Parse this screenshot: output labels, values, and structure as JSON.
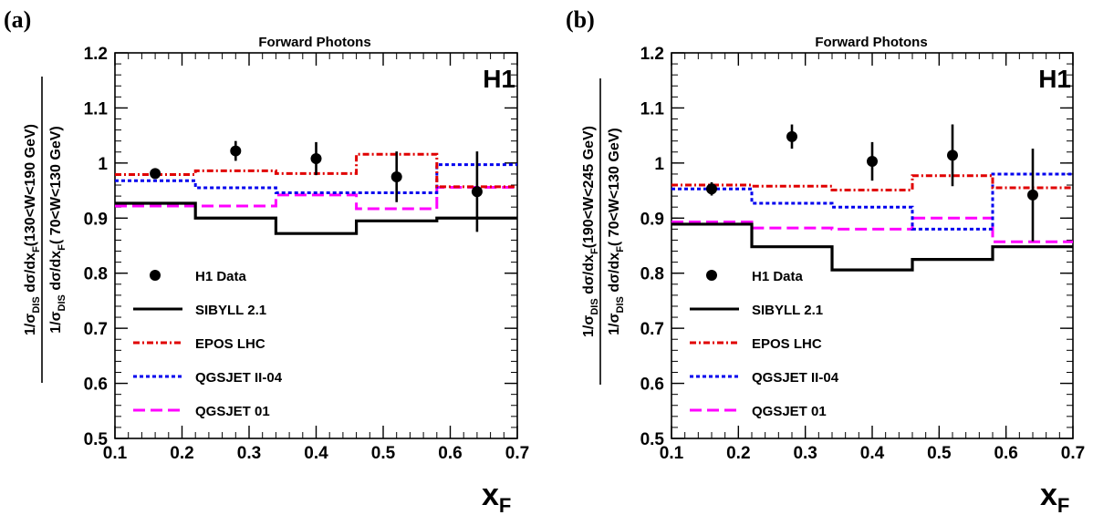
{
  "colors": {
    "sibyll": "#000000",
    "epos": "#e00000",
    "qgsjet2": "#0000ee",
    "qgsjet01": "#ff00ff",
    "data": "#000000"
  },
  "chart_data": [
    {
      "type": "line",
      "panel_label": "(a)",
      "title": "Forward Photons",
      "experiment": "H1",
      "ylabel": {
        "num_prefix": "1/σ",
        "num_sub": "DIS",
        "num_mid": " dσ/dx",
        "num_sub2": "F",
        "num_range": "(130<W<190 GeV)",
        "den_prefix": "1/σ",
        "den_sub": "DIS",
        "den_mid": " dσ/dx",
        "den_sub2": "F",
        "den_range": "( 70<W<130 GeV)"
      },
      "xlabel": {
        "main": "x",
        "sub": "F"
      },
      "xlim": [
        0.1,
        0.7
      ],
      "ylim": [
        0.5,
        1.2
      ],
      "xticks": [
        "0.1",
        "0.2",
        "0.3",
        "0.4",
        "0.5",
        "0.6",
        "0.7"
      ],
      "yticks": [
        "0.5",
        "0.6",
        "0.7",
        "0.8",
        "0.9",
        "1",
        "1.1",
        "1.2"
      ],
      "bin_edges": [
        0.1,
        0.22,
        0.34,
        0.46,
        0.58,
        0.7
      ],
      "series": [
        {
          "name": "SIBYLL 2.1",
          "style": "solid",
          "values": [
            0.927,
            0.9,
            0.872,
            0.895,
            0.9
          ]
        },
        {
          "name": "EPOS LHC",
          "style": "dashdot",
          "values": [
            0.979,
            0.986,
            0.981,
            1.016,
            0.957
          ]
        },
        {
          "name": "QGSJET II-04",
          "style": "dotted",
          "values": [
            0.968,
            0.955,
            0.946,
            0.946,
            0.997
          ]
        },
        {
          "name": "QGSJET 01",
          "style": "dashed",
          "values": [
            0.922,
            0.922,
            0.942,
            0.917,
            0.956
          ]
        }
      ],
      "data_points": {
        "name": "H1 Data",
        "x": [
          0.16,
          0.28,
          0.4,
          0.52,
          0.64
        ],
        "y": [
          0.981,
          1.022,
          1.008,
          0.975,
          0.948
        ],
        "err": [
          0.009,
          0.018,
          0.03,
          0.046,
          0.073
        ]
      },
      "legend": [
        "H1 Data",
        "SIBYLL 2.1",
        "EPOS LHC",
        "QGSJET II-04",
        "QGSJET 01"
      ]
    },
    {
      "type": "line",
      "panel_label": "(b)",
      "title": "Forward Photons",
      "experiment": "H1",
      "ylabel": {
        "num_prefix": "1/σ",
        "num_sub": "DIS",
        "num_mid": " dσ/dx",
        "num_sub2": "F",
        "num_range": "(190<W<245 GeV)",
        "den_prefix": "1/σ",
        "den_sub": "DIS",
        "den_mid": " dσ/dx",
        "den_sub2": "F",
        "den_range": "( 70<W<130 GeV)"
      },
      "xlabel": {
        "main": "x",
        "sub": "F"
      },
      "xlim": [
        0.1,
        0.7
      ],
      "ylim": [
        0.5,
        1.2
      ],
      "xticks": [
        "0.1",
        "0.2",
        "0.3",
        "0.4",
        "0.5",
        "0.6",
        "0.7"
      ],
      "yticks": [
        "0.5",
        "0.6",
        "0.7",
        "0.8",
        "0.9",
        "1",
        "1.1",
        "1.2"
      ],
      "bin_edges": [
        0.1,
        0.22,
        0.34,
        0.46,
        0.58,
        0.7
      ],
      "series": [
        {
          "name": "SIBYLL 2.1",
          "style": "solid",
          "values": [
            0.889,
            0.848,
            0.806,
            0.825,
            0.848
          ]
        },
        {
          "name": "EPOS LHC",
          "style": "dashdot",
          "values": [
            0.96,
            0.958,
            0.951,
            0.977,
            0.955
          ]
        },
        {
          "name": "QGSJET II-04",
          "style": "dotted",
          "values": [
            0.953,
            0.927,
            0.92,
            0.88,
            0.98
          ]
        },
        {
          "name": "QGSJET 01",
          "style": "dashed",
          "values": [
            0.893,
            0.882,
            0.88,
            0.9,
            0.857
          ]
        }
      ],
      "data_points": {
        "name": "H1 Data",
        "x": [
          0.16,
          0.28,
          0.4,
          0.52,
          0.64
        ],
        "y": [
          0.953,
          1.048,
          1.003,
          1.014,
          0.942
        ],
        "err": [
          0.012,
          0.022,
          0.035,
          0.056,
          0.084
        ]
      },
      "legend": [
        "H1 Data",
        "SIBYLL 2.1",
        "EPOS LHC",
        "QGSJET II-04",
        "QGSJET 01"
      ]
    }
  ]
}
